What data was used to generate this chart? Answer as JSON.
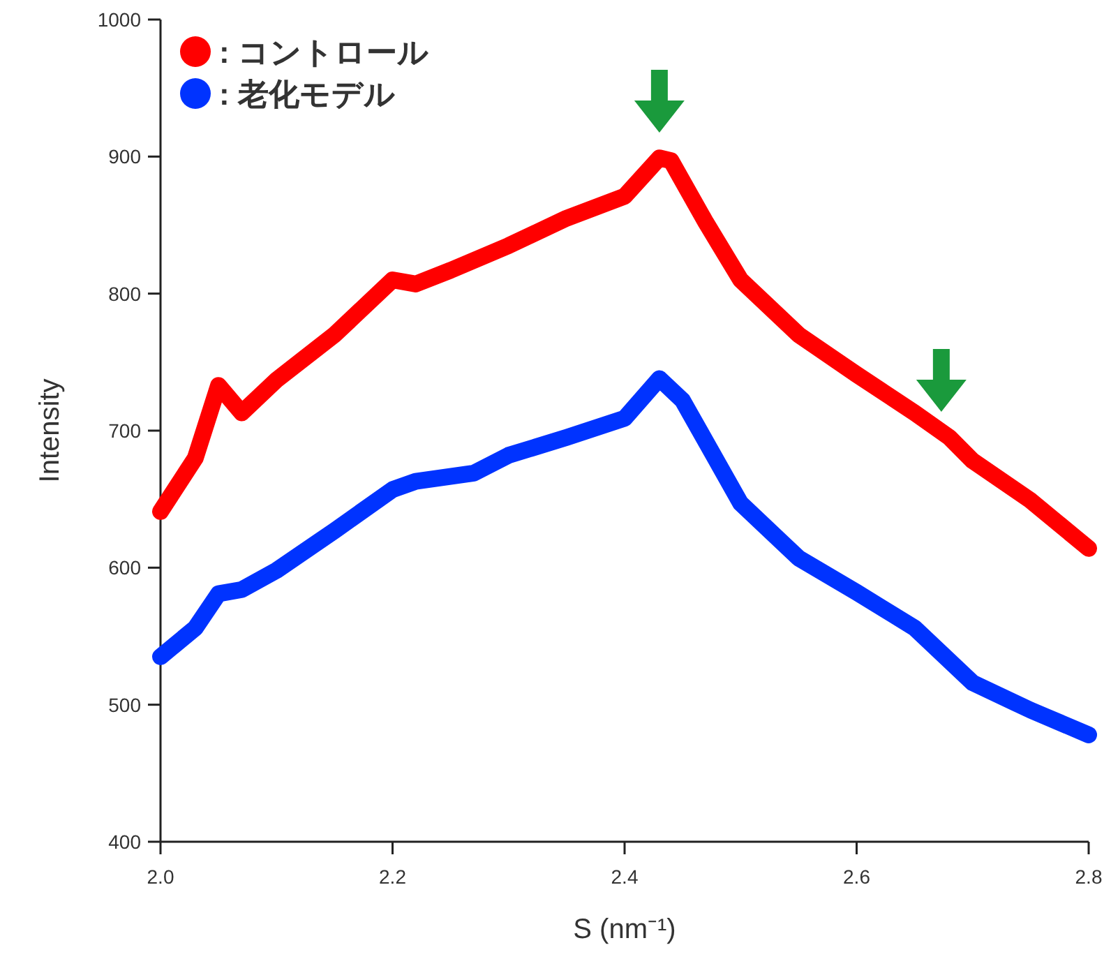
{
  "chart_data": {
    "type": "line",
    "xlabel": "S (nm⁻¹)",
    "ylabel": "Intensity",
    "xlim": [
      2.0,
      2.8
    ],
    "xticks": [
      {
        "value": 2.0,
        "label": "2.0"
      },
      {
        "value": 2.2,
        "label": "2.2"
      },
      {
        "value": 2.4,
        "label": "2.4"
      },
      {
        "value": 2.6,
        "label": "2.6"
      },
      {
        "value": 2.8,
        "label": "2.8"
      }
    ],
    "ylim": [
      400,
      1000
    ],
    "yticks": [
      400,
      500,
      600,
      700,
      800,
      900,
      1000
    ],
    "legend": "top left",
    "grid": false,
    "series": [
      {
        "name": ": コントロール",
        "color": "#ff0000",
        "x": [
          2.0,
          2.03,
          2.05,
          2.07,
          2.1,
          2.15,
          2.2,
          2.22,
          2.25,
          2.3,
          2.35,
          2.4,
          2.43,
          2.44,
          2.47,
          2.5,
          2.55,
          2.6,
          2.65,
          2.68,
          2.7,
          2.75,
          2.8
        ],
        "values": [
          641,
          680,
          733,
          713,
          737,
          770,
          810,
          807,
          817,
          835,
          855,
          871,
          899,
          897,
          852,
          810,
          770,
          741,
          713,
          695,
          678,
          649,
          614
        ]
      },
      {
        "name": ": 老化モデル",
        "color": "#0033ff",
        "x": [
          2.0,
          2.03,
          2.05,
          2.07,
          2.1,
          2.15,
          2.2,
          2.22,
          2.27,
          2.3,
          2.35,
          2.4,
          2.43,
          2.45,
          2.5,
          2.55,
          2.6,
          2.65,
          2.7,
          2.75,
          2.8
        ],
        "values": [
          535,
          556,
          581,
          584,
          598,
          627,
          657,
          663,
          669,
          682,
          695,
          709,
          738,
          722,
          647,
          607,
          582,
          556,
          516,
          496,
          478
        ]
      }
    ]
  }
}
